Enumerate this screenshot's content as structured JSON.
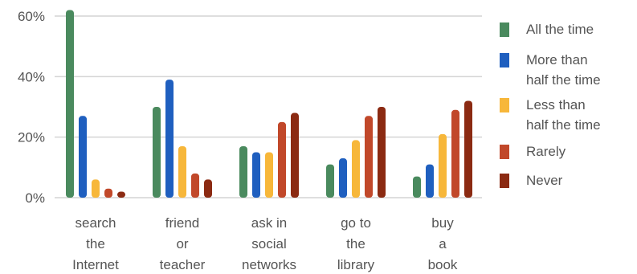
{
  "chart_data": {
    "type": "bar",
    "categories": [
      [
        "search",
        "the",
        "Internet"
      ],
      [
        "friend",
        "or",
        "teacher"
      ],
      [
        "ask in",
        "social",
        "networks"
      ],
      [
        "go to",
        "the",
        "library"
      ],
      [
        "buy",
        "a",
        "book"
      ]
    ],
    "series": [
      {
        "name": "All the time",
        "color": "#4a8a5e",
        "values": [
          62,
          30,
          17,
          11,
          7
        ]
      },
      {
        "name": "More than\nhalf the time",
        "color": "#1f5fbf",
        "values": [
          27,
          39,
          15,
          13,
          11
        ]
      },
      {
        "name": "Less than\nhalf the time",
        "color": "#f7b73a",
        "values": [
          6,
          17,
          15,
          19,
          21
        ]
      },
      {
        "name": "Rarely",
        "color": "#c1482a",
        "values": [
          3,
          8,
          25,
          27,
          29
        ]
      },
      {
        "name": "Never",
        "color": "#8b2a12",
        "values": [
          2,
          6,
          28,
          30,
          32
        ]
      }
    ],
    "y_ticks": [
      "0%",
      "20%",
      "40%",
      "60%"
    ],
    "ylim": [
      0,
      60
    ],
    "grid": true,
    "legend_position": "right"
  }
}
